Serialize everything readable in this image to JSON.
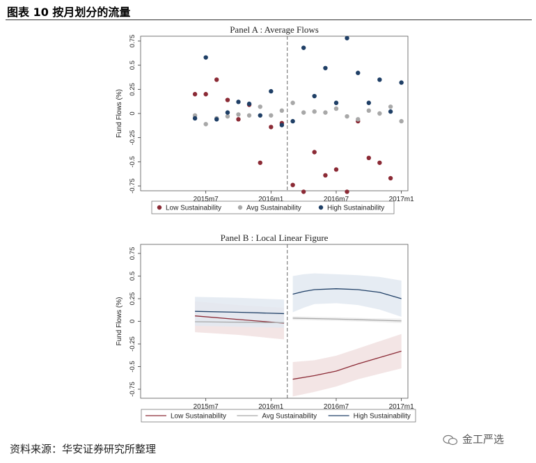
{
  "header": {
    "title": "图表 10 按月划分的流量"
  },
  "footer": {
    "source": "资料来源：华安证券研究所整理",
    "watermark": "金工严选"
  },
  "colors": {
    "low": "#8b2a35",
    "avg": "#a8a8a8",
    "high": "#1f3f66",
    "low_band": "#f1e1e1",
    "avg_band": "#ececec",
    "high_band": "#e2e9f1"
  },
  "chart_data": [
    {
      "type": "scatter",
      "title": "Panel A : Average Flows",
      "ylabel": "Fund Flows (%)",
      "ylim": [
        -0.8,
        0.8
      ],
      "yticks": [
        "-0.75",
        "-0.5",
        "-0.25",
        "0",
        "0.25",
        "0.5",
        "0.75"
      ],
      "ytick_values": [
        -0.75,
        -0.5,
        -0.25,
        0,
        0.25,
        0.5,
        0.75
      ],
      "xlim": [
        2015.0,
        2017.05
      ],
      "xticks": [
        "2015m7",
        "2016m1",
        "2016m7",
        "2017m1"
      ],
      "xtick_values": [
        2015.5,
        2016.0,
        2016.5,
        2017.0
      ],
      "cutoff": 2016.125,
      "legend": [
        "Low Sustainability",
        "Avg Sustainability",
        "High Sustainability"
      ],
      "legend_position": "bottom",
      "series": [
        {
          "name": "Low Sustainability",
          "color_key": "low",
          "x": [
            2015.417,
            2015.5,
            2015.583,
            2015.667,
            2015.75,
            2015.833,
            2015.917,
            2016.0,
            2016.083,
            2016.167,
            2016.25,
            2016.333,
            2016.417,
            2016.5,
            2016.583,
            2016.667,
            2016.75,
            2016.833,
            2016.917
          ],
          "y": [
            0.2,
            0.2,
            0.35,
            0.14,
            -0.06,
            0.09,
            -0.51,
            -0.14,
            -0.1,
            -0.74,
            -0.81,
            -0.4,
            -0.64,
            -0.58,
            -0.81,
            -0.08,
            -0.46,
            -0.51,
            -0.67
          ]
        },
        {
          "name": "Avg Sustainability",
          "color_key": "avg",
          "x": [
            2015.417,
            2015.5,
            2015.583,
            2015.667,
            2015.75,
            2015.833,
            2015.917,
            2016.0,
            2016.083,
            2016.167,
            2016.25,
            2016.333,
            2016.417,
            2016.5,
            2016.583,
            2016.667,
            2016.75,
            2016.833,
            2016.917,
            2017.0
          ],
          "y": [
            -0.02,
            -0.11,
            -0.05,
            -0.03,
            -0.01,
            -0.02,
            0.07,
            -0.02,
            0.03,
            0.11,
            0.01,
            0.02,
            0.01,
            0.05,
            -0.03,
            -0.06,
            0.03,
            0.0,
            0.07,
            -0.08
          ]
        },
        {
          "name": "High Sustainability",
          "color_key": "high",
          "x": [
            2015.417,
            2015.5,
            2015.583,
            2015.667,
            2015.75,
            2015.833,
            2015.917,
            2016.0,
            2016.083,
            2016.167,
            2016.25,
            2016.333,
            2016.417,
            2016.5,
            2016.583,
            2016.667,
            2016.75,
            2016.833,
            2016.917,
            2017.0
          ],
          "y": [
            -0.05,
            0.58,
            -0.06,
            0.01,
            0.12,
            0.1,
            -0.02,
            0.23,
            -0.12,
            -0.08,
            0.68,
            0.18,
            0.47,
            0.11,
            0.78,
            0.42,
            0.11,
            0.35,
            0.02,
            0.32
          ]
        }
      ]
    },
    {
      "type": "line",
      "title": "Panel B : Local Linear Figure",
      "ylabel": "Fund Flows (%)",
      "ylim": [
        -0.85,
        0.85
      ],
      "yticks": [
        "-0.75",
        "-0.5",
        "-0.25",
        "0",
        "0.25",
        "0.5",
        "0.75"
      ],
      "ytick_values": [
        -0.75,
        -0.5,
        -0.25,
        0,
        0.25,
        0.5,
        0.75
      ],
      "xlim": [
        2015.0,
        2017.05
      ],
      "xticks": [
        "2015m7",
        "2016m1",
        "2016m7",
        "2017m1"
      ],
      "xtick_values": [
        2015.5,
        2016.0,
        2016.5,
        2017.0
      ],
      "cutoff": 2016.125,
      "legend": [
        "Low Sustainability",
        "Avg Sustainability",
        "High Sustainability"
      ],
      "legend_position": "bottom",
      "series": [
        {
          "name": "Low Sustainability",
          "color_key": "low",
          "band_key": "low_band",
          "segments": [
            {
              "x": [
                2015.417,
                2015.75,
                2016.1
              ],
              "y": [
                0.06,
                0.02,
                -0.02
              ],
              "lo": [
                -0.12,
                -0.15,
                -0.2
              ],
              "hi": [
                0.22,
                0.18,
                0.15
              ]
            },
            {
              "x": [
                2016.167,
                2016.333,
                2016.5,
                2016.667,
                2016.833,
                2017.0
              ],
              "y": [
                -0.64,
                -0.6,
                -0.55,
                -0.47,
                -0.4,
                -0.33
              ],
              "lo": [
                -0.83,
                -0.78,
                -0.72,
                -0.64,
                -0.58,
                -0.52
              ],
              "hi": [
                -0.45,
                -0.43,
                -0.38,
                -0.3,
                -0.22,
                -0.14
              ]
            }
          ]
        },
        {
          "name": "Avg Sustainability",
          "color_key": "avg",
          "band_key": "avg_band",
          "segments": [
            {
              "x": [
                2015.417,
                2015.75,
                2016.1
              ],
              "y": [
                -0.005,
                -0.01,
                -0.015
              ],
              "lo": [
                -0.03,
                -0.035,
                -0.04
              ],
              "hi": [
                0.02,
                0.015,
                0.01
              ]
            },
            {
              "x": [
                2016.167,
                2016.5,
                2016.75,
                2017.0
              ],
              "y": [
                0.035,
                0.025,
                0.015,
                0.005
              ],
              "lo": [
                0.015,
                0.005,
                -0.005,
                -0.02
              ],
              "hi": [
                0.055,
                0.045,
                0.035,
                0.03
              ]
            }
          ]
        },
        {
          "name": "High Sustainability",
          "color_key": "high",
          "band_key": "high_band",
          "segments": [
            {
              "x": [
                2015.417,
                2015.75,
                2016.1
              ],
              "y": [
                0.11,
                0.1,
                0.085
              ],
              "lo": [
                -0.05,
                -0.06,
                -0.07
              ],
              "hi": [
                0.27,
                0.26,
                0.24
              ]
            },
            {
              "x": [
                2016.167,
                2016.25,
                2016.333,
                2016.5,
                2016.667,
                2016.833,
                2017.0
              ],
              "y": [
                0.3,
                0.33,
                0.35,
                0.36,
                0.35,
                0.32,
                0.25
              ],
              "lo": [
                0.1,
                0.15,
                0.19,
                0.2,
                0.18,
                0.13,
                0.05
              ],
              "hi": [
                0.5,
                0.52,
                0.53,
                0.52,
                0.51,
                0.49,
                0.45
              ]
            }
          ]
        }
      ]
    }
  ]
}
